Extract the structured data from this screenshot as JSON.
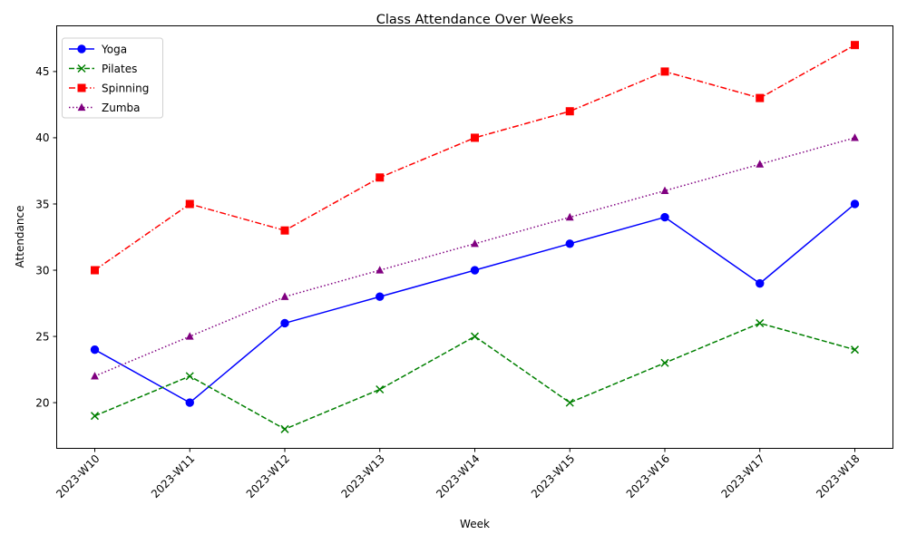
{
  "chart_data": {
    "type": "line",
    "title": "Class Attendance Over Weeks",
    "xlabel": "Week",
    "ylabel": "Attendance",
    "categories": [
      "2023-W10",
      "2023-W11",
      "2023-W12",
      "2023-W13",
      "2023-W14",
      "2023-W15",
      "2023-W16",
      "2023-W17",
      "2023-W18"
    ],
    "ylim": [
      16.55,
      48.45
    ],
    "yticks": [
      20,
      25,
      30,
      35,
      40,
      45
    ],
    "grid": false,
    "legend_position": "top-left",
    "series": [
      {
        "name": "Yoga",
        "values": [
          24,
          20,
          26,
          28,
          30,
          32,
          34,
          29,
          35
        ],
        "color": "#0000ff",
        "linestyle": "solid",
        "marker": "circle"
      },
      {
        "name": "Pilates",
        "values": [
          19,
          22,
          18,
          21,
          25,
          20,
          23,
          26,
          24
        ],
        "color": "#008000",
        "linestyle": "dashed",
        "marker": "x"
      },
      {
        "name": "Spinning",
        "values": [
          30,
          35,
          33,
          37,
          40,
          42,
          45,
          43,
          47
        ],
        "color": "#ff0000",
        "linestyle": "dashdot",
        "marker": "square"
      },
      {
        "name": "Zumba",
        "values": [
          22,
          25,
          28,
          30,
          32,
          34,
          36,
          38,
          40
        ],
        "color": "#800080",
        "linestyle": "dotted",
        "marker": "triangle"
      }
    ]
  }
}
